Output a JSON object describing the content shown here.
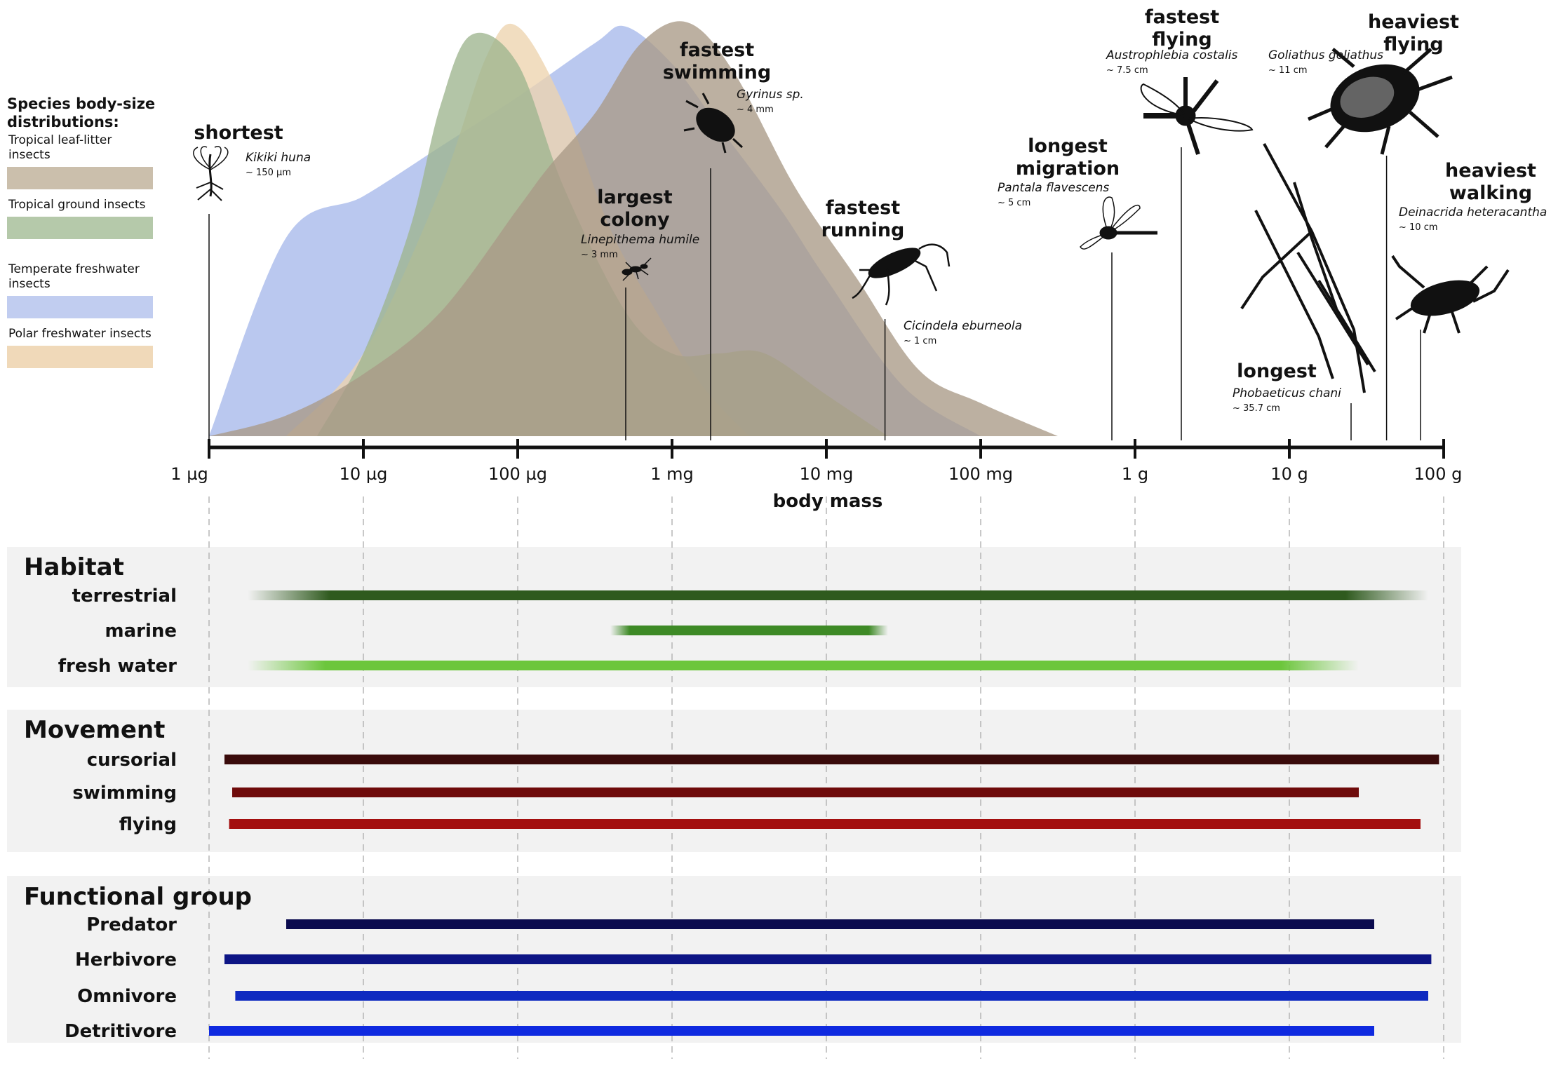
{
  "chart_data": {
    "type": "area",
    "x_axis": {
      "label": "body mass",
      "scale": "log",
      "range": [
        "1 µg",
        "100 g"
      ],
      "ticks": [
        "1 µg",
        "10 µg",
        "100 µg",
        "1 mg",
        "10 mg",
        "100 mg",
        "1 g",
        "10 g",
        "100 g"
      ]
    },
    "legend": {
      "title": "Species body-size distributions:",
      "placement": "left",
      "items": [
        {
          "name": "Tropical leaf-litter insects",
          "color": "#cbbfac"
        },
        {
          "name": "Tropical ground insects",
          "color": "#b5c9aa"
        },
        {
          "name": "Temperate freshwater insects",
          "color": "#c1cdf0"
        },
        {
          "name": "Polar freshwater insects",
          "color": "#f0d9b9"
        }
      ]
    },
    "series": [
      {
        "name": "Temperate freshwater insects",
        "color": "#a7b9ea",
        "x": [
          0,
          0.5,
          1.0,
          1.5,
          2.0,
          2.5,
          2.7,
          3.0,
          3.3,
          3.7,
          4.0,
          4.5,
          5.0
        ],
        "y": [
          0,
          0.48,
          0.58,
          0.7,
          0.82,
          0.95,
          0.99,
          0.9,
          0.75,
          0.55,
          0.38,
          0.12,
          0
        ]
      },
      {
        "name": "Polar freshwater insects",
        "color": "#edd3ae",
        "x": [
          0.5,
          1.0,
          1.5,
          1.8,
          2.0,
          2.3,
          2.6,
          2.9,
          3.2,
          3.5
        ],
        "y": [
          0,
          0.2,
          0.6,
          0.92,
          0.99,
          0.8,
          0.5,
          0.3,
          0.12,
          0
        ]
      },
      {
        "name": "Tropical ground insects",
        "color": "#9db58e",
        "x": [
          0.7,
          1.0,
          1.3,
          1.5,
          1.7,
          2.0,
          2.3,
          2.7,
          3.0,
          3.3,
          3.6,
          4.0,
          4.4
        ],
        "y": [
          0,
          0.2,
          0.5,
          0.8,
          0.97,
          0.9,
          0.6,
          0.3,
          0.2,
          0.2,
          0.2,
          0.1,
          0
        ]
      },
      {
        "name": "Tropical leaf-litter insects",
        "color": "#a99a86",
        "x": [
          0,
          0.5,
          1.0,
          1.5,
          2.0,
          2.2,
          2.5,
          2.8,
          3.1,
          3.4,
          3.8,
          4.2,
          4.6,
          5.0,
          5.5
        ],
        "y": [
          0,
          0.05,
          0.15,
          0.3,
          0.55,
          0.65,
          0.78,
          0.95,
          1.0,
          0.88,
          0.6,
          0.38,
          0.16,
          0.08,
          0
        ]
      }
    ],
    "records": [
      {
        "title": [
          "shortest"
        ],
        "species": "Kikiki huna",
        "size": "~ 150 µm",
        "x": 0.0,
        "icon": "fairyfly-icon"
      },
      {
        "title": [
          "largest",
          "colony"
        ],
        "species": "Linepithema humile",
        "size": "~ 3 mm",
        "x": 2.7,
        "icon": "ant-icon"
      },
      {
        "title": [
          "fastest",
          "swimming"
        ],
        "species": "Gyrinus sp.",
        "size": "~ 4 mm",
        "x": 3.25,
        "icon": "whirligig-beetle-icon"
      },
      {
        "title": [
          "fastest",
          "running"
        ],
        "species": "Cicindela eburneola",
        "size": "~ 1 cm",
        "x": 4.38,
        "icon": "tiger-beetle-icon"
      },
      {
        "title": [
          "longest",
          "migration"
        ],
        "species": "Pantala flavescens",
        "size": "~ 5 cm",
        "x": 5.85,
        "icon": "globe-skimmer-icon"
      },
      {
        "title": [
          "fastest",
          "flying"
        ],
        "species": "Austrophlebia costalis",
        "size": "~ 7.5 cm",
        "x": 6.3,
        "icon": "dragonfly-icon"
      },
      {
        "title": [
          "longest"
        ],
        "species": "Phobaeticus chani",
        "size": "~ 35.7 cm",
        "x": 7.4,
        "icon": "stick-insect-icon"
      },
      {
        "title": [
          "heaviest",
          "flying"
        ],
        "species": "Goliathus goliathus",
        "size": "~ 11 cm",
        "x": 7.63,
        "icon": "goliath-beetle-icon"
      },
      {
        "title": [
          "heaviest",
          "walking"
        ],
        "species": "Deinacrida heteracantha",
        "size": "~ 10 cm",
        "x": 7.85,
        "icon": "weta-icon"
      }
    ],
    "range_panels": [
      {
        "title": "Habitat",
        "rows": [
          {
            "label": "terrestrial",
            "min": 0.25,
            "max": 7.9,
            "color": "#2f5a1e",
            "fade": true
          },
          {
            "label": "marine",
            "min": 2.6,
            "max": 4.4,
            "color": "#3e8a26",
            "fade": true
          },
          {
            "label": "fresh water",
            "min": 0.25,
            "max": 7.45,
            "color": "#6cc63c",
            "fade": true
          }
        ]
      },
      {
        "title": "Movement",
        "rows": [
          {
            "label": "cursorial",
            "min": 0.1,
            "max": 7.97,
            "color": "#3a0b0b"
          },
          {
            "label": "swimming",
            "min": 0.15,
            "max": 7.45,
            "color": "#6f0b0b"
          },
          {
            "label": "flying",
            "min": 0.13,
            "max": 7.85,
            "color": "#a30e0e"
          }
        ]
      },
      {
        "title": "Functional group",
        "rows": [
          {
            "label": "Predator",
            "min": 0.5,
            "max": 7.55,
            "color": "#0b0b4f"
          },
          {
            "label": "Herbivore",
            "min": 0.1,
            "max": 7.92,
            "color": "#0d1585"
          },
          {
            "label": "Omnivore",
            "min": 0.17,
            "max": 7.9,
            "color": "#0f2ac0"
          },
          {
            "label": "Detritivore",
            "min": 0.0,
            "max": 7.55,
            "color": "#0f2ae0"
          }
        ]
      }
    ]
  }
}
